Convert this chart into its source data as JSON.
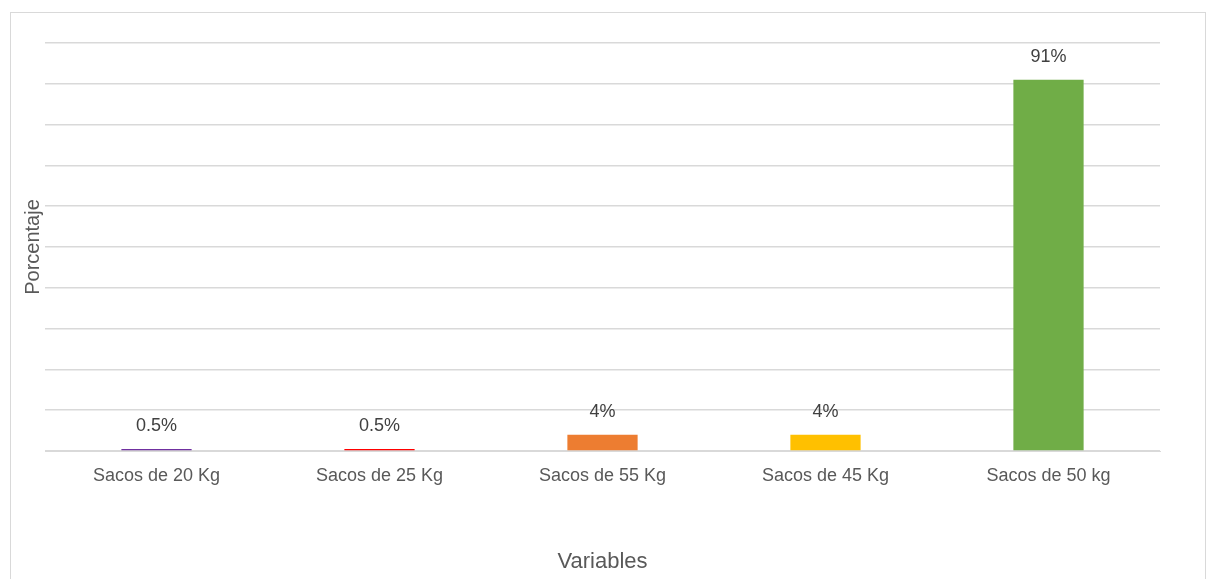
{
  "chart_data": {
    "type": "bar",
    "xlabel": "Variables",
    "ylabel": "Porcentaje",
    "categories": [
      "Sacos de 20 Kg",
      "Sacos de 25 Kg",
      "Sacos de 55 Kg",
      "Sacos de 45 Kg",
      "Sacos de 50 kg"
    ],
    "values": [
      0.5,
      0.5,
      4,
      4,
      91
    ],
    "colors": [
      "#7030a0",
      "#ff0000",
      "#ed7d31",
      "#ffc000",
      "#70ad47"
    ],
    "value_labels": [
      "0.5%",
      "0.5%",
      "4%",
      "4%",
      "91%"
    ],
    "ylim": [
      0,
      100
    ],
    "yticks": [
      {
        "value": 0,
        "label": null
      },
      {
        "value": 10,
        "label": null
      },
      {
        "value": 20,
        "label": null
      },
      {
        "value": 30,
        "label": null
      },
      {
        "value": 40,
        "label": null
      },
      {
        "value": 50,
        "label": null
      },
      {
        "value": 60,
        "label": null
      },
      {
        "value": 70,
        "label": null
      },
      {
        "value": 80,
        "label": null
      },
      {
        "value": 90,
        "label": null
      },
      {
        "value": 100,
        "label": null
      }
    ],
    "grid": "y",
    "legend": false,
    "tick_labels": "x"
  }
}
